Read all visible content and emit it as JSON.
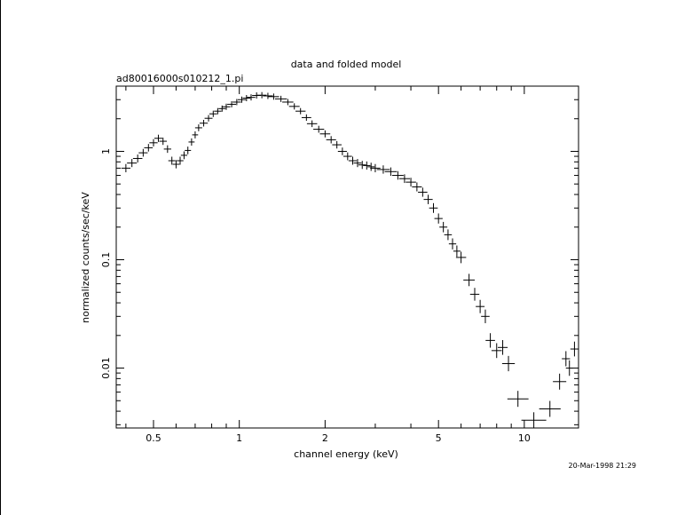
{
  "chart_data": {
    "type": "scatter",
    "title": "data and folded model",
    "subtitle": "ad80016000s010212_1.pi",
    "xlabel": "channel energy (keV)",
    "ylabel": "normalized counts/sec/keV",
    "xscale": "log",
    "yscale": "log",
    "xlim": [
      0.37,
      15.5
    ],
    "ylim": [
      0.0028,
      4.0
    ],
    "x_ticks": [
      0.5,
      1,
      2,
      5,
      10
    ],
    "x_tick_labels": [
      "0.5",
      "1",
      "2",
      "5",
      "10"
    ],
    "y_ticks": [
      0.01,
      0.1,
      1
    ],
    "y_tick_labels": [
      "0.01",
      "0.1",
      "1"
    ],
    "grid": false,
    "timestamp": "20-Mar-1998 21:29",
    "series": [
      {
        "points": [
          [
            0.4,
            0.7
          ],
          [
            0.42,
            0.78
          ],
          [
            0.44,
            0.86
          ],
          [
            0.46,
            0.97
          ],
          [
            0.48,
            1.08
          ],
          [
            0.5,
            1.2
          ],
          [
            0.52,
            1.32
          ],
          [
            0.54,
            1.24
          ],
          [
            0.56,
            1.05
          ],
          [
            0.58,
            0.82
          ],
          [
            0.6,
            0.76
          ],
          [
            0.62,
            0.82
          ],
          [
            0.64,
            0.92
          ],
          [
            0.66,
            1.02
          ],
          [
            0.68,
            1.22
          ],
          [
            0.7,
            1.42
          ],
          [
            0.72,
            1.65
          ],
          [
            0.75,
            1.82
          ],
          [
            0.78,
            2.02
          ],
          [
            0.81,
            2.22
          ],
          [
            0.84,
            2.35
          ],
          [
            0.87,
            2.48
          ],
          [
            0.9,
            2.58
          ],
          [
            0.94,
            2.72
          ],
          [
            0.98,
            2.85
          ],
          [
            1.02,
            3.0
          ],
          [
            1.06,
            3.1
          ],
          [
            1.1,
            3.15
          ],
          [
            1.15,
            3.28
          ],
          [
            1.2,
            3.3
          ],
          [
            1.26,
            3.25
          ],
          [
            1.32,
            3.2
          ],
          [
            1.4,
            3.05
          ],
          [
            1.48,
            2.85
          ],
          [
            1.56,
            2.6
          ],
          [
            1.64,
            2.35
          ],
          [
            1.72,
            2.05
          ],
          [
            1.8,
            1.8
          ],
          [
            1.9,
            1.6
          ],
          [
            2.0,
            1.45
          ],
          [
            2.1,
            1.28
          ],
          [
            2.2,
            1.15
          ],
          [
            2.3,
            1.0
          ],
          [
            2.4,
            0.9
          ],
          [
            2.5,
            0.82
          ],
          [
            2.6,
            0.78
          ],
          [
            2.7,
            0.75
          ],
          [
            2.8,
            0.74
          ],
          [
            2.9,
            0.72
          ],
          [
            3.0,
            0.7
          ],
          [
            3.2,
            0.68
          ],
          [
            3.4,
            0.65
          ],
          [
            3.6,
            0.6
          ],
          [
            3.8,
            0.56
          ],
          [
            4.0,
            0.52
          ],
          [
            4.2,
            0.47
          ],
          [
            4.4,
            0.42
          ],
          [
            4.6,
            0.36
          ],
          [
            4.8,
            0.3
          ],
          [
            5.0,
            0.24
          ],
          [
            5.2,
            0.2
          ],
          [
            5.4,
            0.17
          ],
          [
            5.6,
            0.14
          ],
          [
            5.8,
            0.12
          ],
          [
            6.0,
            0.105
          ],
          [
            6.4,
            0.065
          ],
          [
            6.7,
            0.048
          ],
          [
            7.0,
            0.037
          ],
          [
            7.3,
            0.03
          ],
          [
            7.6,
            0.018
          ],
          [
            8.0,
            0.0145
          ],
          [
            8.4,
            0.0155
          ],
          [
            8.8,
            0.011
          ],
          [
            9.5,
            0.0052
          ],
          [
            10.8,
            0.0033
          ],
          [
            12.3,
            0.0042
          ],
          [
            13.3,
            0.0075
          ],
          [
            14.0,
            0.0122
          ],
          [
            14.4,
            0.01
          ],
          [
            15.0,
            0.015
          ]
        ]
      }
    ]
  }
}
